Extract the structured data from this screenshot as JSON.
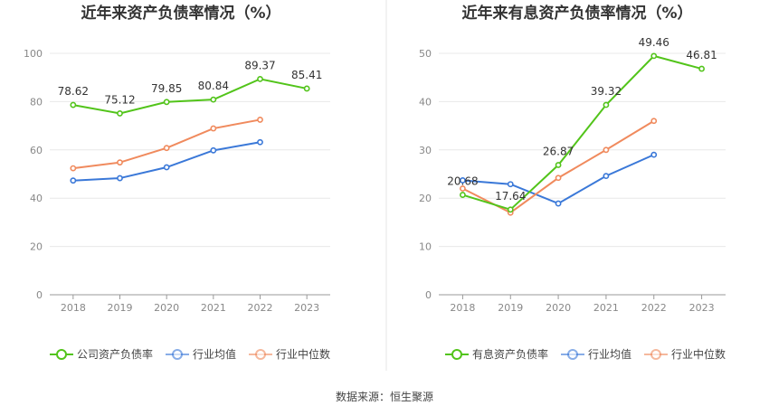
{
  "source_label": "数据来源：恒生聚源",
  "chart_data": [
    {
      "type": "line",
      "title": "近年来资产负债率情况（%）",
      "categories": [
        "2018",
        "2019",
        "2020",
        "2021",
        "2022",
        "2023"
      ],
      "ylim": [
        0,
        100
      ],
      "yticks": [
        "0",
        "20",
        "40",
        "60",
        "80",
        "100"
      ],
      "grid": true,
      "legend_position": "bottom",
      "series": [
        {
          "name": "公司资产负债率",
          "color": "#52c41a",
          "values": [
            78.62,
            75.12,
            79.85,
            80.84,
            89.37,
            85.41
          ],
          "labels": [
            "78.62",
            "75.12",
            "79.85",
            "80.84",
            "89.37",
            "85.41"
          ]
        },
        {
          "name": "行业均值",
          "color": "#3a78d8",
          "values": [
            47.3,
            48.3,
            52.8,
            59.8,
            63.2,
            null
          ],
          "labels": []
        },
        {
          "name": "行业中位数",
          "color": "#f08a5d",
          "values": [
            52.4,
            54.8,
            60.8,
            68.9,
            72.5,
            null
          ],
          "labels": []
        }
      ]
    },
    {
      "type": "line",
      "title": "近年来有息资产负债率情况（%）",
      "categories": [
        "2018",
        "2019",
        "2020",
        "2021",
        "2022",
        "2023"
      ],
      "ylim": [
        0,
        50
      ],
      "yticks": [
        "0",
        "10",
        "20",
        "30",
        "40",
        "50"
      ],
      "grid": true,
      "legend_position": "bottom",
      "series": [
        {
          "name": "有息资产负债率",
          "color": "#52c41a",
          "values": [
            20.68,
            17.64,
            26.87,
            39.32,
            49.46,
            46.81
          ],
          "labels": [
            "20.68",
            "17.64",
            "26.87",
            "39.32",
            "49.46",
            "46.81"
          ]
        },
        {
          "name": "行业均值",
          "color": "#3a78d8",
          "values": [
            23.7,
            22.9,
            18.9,
            24.6,
            29.0,
            null
          ],
          "labels": []
        },
        {
          "name": "行业中位数",
          "color": "#f08a5d",
          "values": [
            22.0,
            17.0,
            24.2,
            30.0,
            36.0,
            null
          ],
          "labels": []
        }
      ]
    }
  ]
}
